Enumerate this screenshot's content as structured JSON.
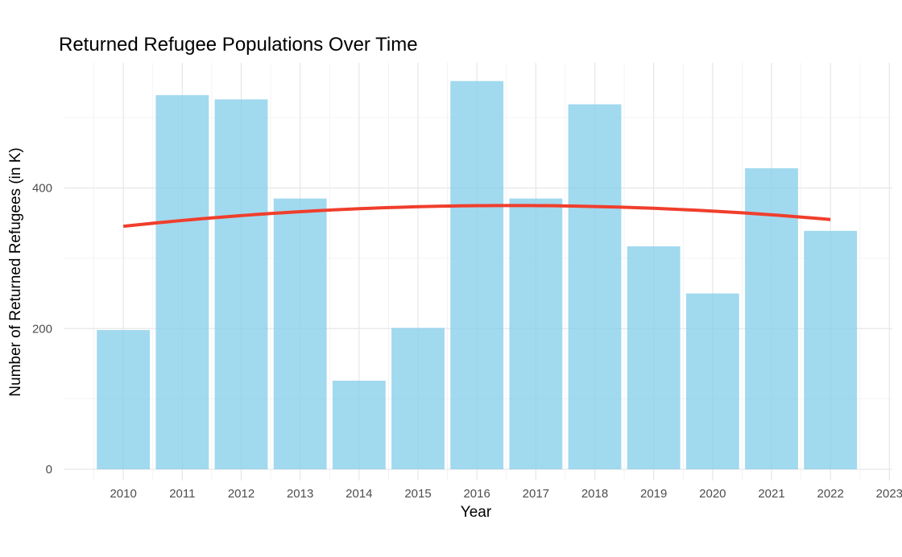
{
  "chart_data": {
    "type": "bar",
    "title": "Returned Refugee Populations Over Time",
    "xlabel": "Year",
    "ylabel": "Number of Returned Refugees (in K)",
    "categories": [
      "2010",
      "2011",
      "2012",
      "2013",
      "2014",
      "2015",
      "2016",
      "2017",
      "2018",
      "2019",
      "2020",
      "2021",
      "2022"
    ],
    "x_ticks": [
      "2010",
      "2011",
      "2012",
      "2013",
      "2014",
      "2015",
      "2016",
      "2017",
      "2018",
      "2019",
      "2020",
      "2021",
      "2022",
      "2023"
    ],
    "values": [
      198,
      532,
      526,
      385,
      126,
      201,
      552,
      385,
      519,
      317,
      250,
      428,
      339
    ],
    "y_ticks": [
      0,
      200,
      400
    ],
    "ylim": [
      -16,
      578
    ],
    "xlim": [
      2009.0,
      2023.05
    ],
    "grid": true,
    "bar_color": "#87CEEB",
    "trend": {
      "type": "quadratic",
      "color": "#F03E2C",
      "x_range": [
        2010,
        2022
      ],
      "coefficients": [
        374.8,
        0.8,
        -0.68
      ]
    }
  }
}
